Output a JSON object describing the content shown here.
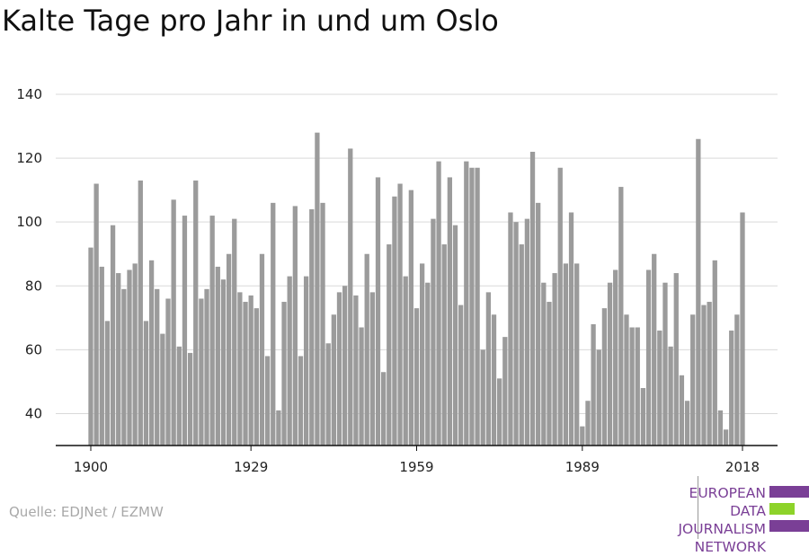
{
  "chart_data": {
    "type": "bar",
    "title": "Kalte Tage pro Jahr in und um Oslo",
    "xlabel": "",
    "ylabel": "",
    "x_start": 1900,
    "x_end": 2018,
    "values": [
      92,
      112,
      86,
      69,
      99,
      84,
      79,
      85,
      87,
      113,
      69,
      88,
      79,
      65,
      76,
      107,
      61,
      102,
      59,
      113,
      76,
      79,
      102,
      86,
      82,
      90,
      101,
      78,
      75,
      77,
      73,
      90,
      58,
      106,
      41,
      75,
      83,
      105,
      58,
      83,
      104,
      128,
      106,
      62,
      71,
      78,
      80,
      123,
      77,
      67,
      90,
      78,
      114,
      53,
      93,
      108,
      112,
      83,
      110,
      73,
      87,
      81,
      101,
      119,
      93,
      114,
      99,
      74,
      119,
      117,
      117,
      60,
      78,
      71,
      51,
      64,
      103,
      100,
      93,
      101,
      122,
      106,
      81,
      75,
      84,
      117,
      87,
      103,
      87,
      36,
      44,
      68,
      60,
      73,
      81,
      85,
      111,
      71,
      67,
      67,
      48,
      85,
      90,
      66,
      81,
      61,
      84,
      52,
      44,
      71,
      126,
      74,
      75,
      88,
      41,
      35,
      66,
      71,
      103
    ],
    "xticks": [
      "1900",
      "1929",
      "1959",
      "1989",
      "2018"
    ],
    "yticks": [
      "40",
      "60",
      "80",
      "100",
      "120",
      "140"
    ],
    "ylim": [
      30,
      140
    ],
    "grid": true,
    "bar_color": "#9b9b9b"
  },
  "source": "Quelle: EDJNet / EZMW",
  "logo": {
    "lines": [
      "EUROPEAN",
      "DATA JOURNALISM",
      "NETWORK"
    ],
    "text_color": "#7a3f96",
    "bar_colors": [
      "#7a3f96",
      "#8dd32a",
      "#7a3f96"
    ]
  }
}
